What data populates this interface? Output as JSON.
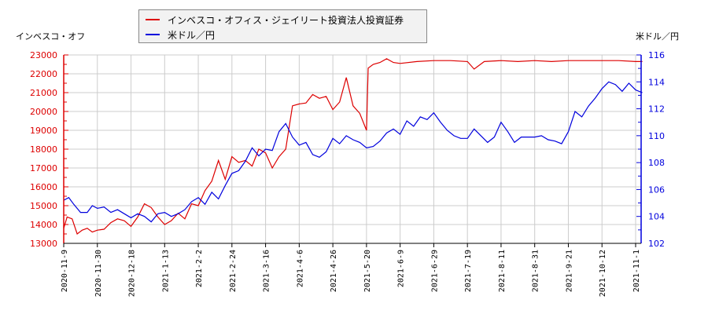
{
  "legend": {
    "items": [
      {
        "label": "インベスコ・オフィス・ジェイリート投資法人投資証券",
        "color": "#dd0000"
      },
      {
        "label": "米ドル／円",
        "color": "#0000dd"
      }
    ]
  },
  "axes": {
    "left_title": "インベスコ・オフ",
    "right_title": "米ドル／円"
  },
  "chart_data": {
    "type": "line",
    "title": "",
    "legend_position": "top",
    "grid": true,
    "x_tick_labels": [
      "2020-11-9",
      "2020-11-30",
      "2020-12-18",
      "2021-1-13",
      "2021-2-2",
      "2021-2-24",
      "2021-3-16",
      "2021-4-6",
      "2021-4-26",
      "2021-5-20",
      "2021-6-9",
      "2021-6-29",
      "2021-7-19",
      "2021-8-11",
      "2021-8-31",
      "2021-9-21",
      "2021-10-12",
      "2021-11-1"
    ],
    "y_left": {
      "label": "インベスコ・オフ",
      "ticks": [
        13000,
        14000,
        15000,
        16000,
        17000,
        18000,
        19000,
        20000,
        21000,
        22000,
        23000
      ],
      "range": [
        13000,
        23000
      ],
      "color": "#dd0000"
    },
    "y_right": {
      "label": "米ドル／円",
      "ticks": [
        102,
        104,
        106,
        108,
        110,
        112,
        114,
        116
      ],
      "range": [
        102,
        116
      ],
      "color": "#0000dd"
    },
    "series": [
      {
        "name": "インベスコ・オフィス・ジェイリート投資法人投資証券",
        "axis": "left",
        "color": "#dd0000",
        "x_index": [
          0,
          0.1,
          0.25,
          0.4,
          0.55,
          0.7,
          0.85,
          1.0,
          1.2,
          1.4,
          1.6,
          1.8,
          2.0,
          2.2,
          2.4,
          2.6,
          2.8,
          3.0,
          3.2,
          3.4,
          3.6,
          3.8,
          4.0,
          4.2,
          4.4,
          4.6,
          4.8,
          5.0,
          5.2,
          5.4,
          5.6,
          5.8,
          6.0,
          6.2,
          6.4,
          6.6,
          6.8,
          7.0,
          7.2,
          7.4,
          7.6,
          7.8,
          8.0,
          8.2,
          8.4,
          8.6,
          8.8,
          9.0,
          9.05,
          9.2,
          9.4,
          9.6,
          9.8,
          10.0,
          10.5,
          11.0,
          11.5,
          12.0,
          12.2,
          12.5,
          13.0,
          13.5,
          14.0,
          14.5,
          15.0,
          15.5,
          16.0,
          16.5,
          17.0,
          17.2
        ],
        "values": [
          13800,
          14400,
          14300,
          13500,
          13700,
          13800,
          13600,
          13700,
          13750,
          14100,
          14300,
          14200,
          13900,
          14400,
          15100,
          14900,
          14400,
          14000,
          14200,
          14600,
          14300,
          15100,
          15000,
          15800,
          16300,
          17400,
          16400,
          17600,
          17300,
          17400,
          17100,
          18000,
          17800,
          17000,
          17600,
          18000,
          20300,
          20400,
          20450,
          20900,
          20700,
          20800,
          20100,
          20500,
          21800,
          20300,
          19900,
          19000,
          22300,
          22500,
          22600,
          22800,
          22600,
          22550,
          22650,
          22700,
          22700,
          22650,
          22250,
          22650,
          22700,
          22650,
          22700,
          22650,
          22700,
          22700,
          22700,
          22700,
          22650,
          22650
        ]
      },
      {
        "name": "米ドル／円",
        "axis": "right",
        "color": "#0000dd",
        "x_index": [
          0,
          0.15,
          0.3,
          0.5,
          0.7,
          0.85,
          1.0,
          1.2,
          1.4,
          1.6,
          1.8,
          2.0,
          2.2,
          2.4,
          2.6,
          2.8,
          3.0,
          3.2,
          3.4,
          3.6,
          3.8,
          4.0,
          4.2,
          4.4,
          4.6,
          4.8,
          5.0,
          5.2,
          5.4,
          5.6,
          5.8,
          6.0,
          6.2,
          6.4,
          6.6,
          6.8,
          7.0,
          7.2,
          7.4,
          7.6,
          7.8,
          8.0,
          8.2,
          8.4,
          8.6,
          8.8,
          9.0,
          9.2,
          9.4,
          9.6,
          9.8,
          10.0,
          10.2,
          10.4,
          10.6,
          10.8,
          11.0,
          11.2,
          11.4,
          11.6,
          11.8,
          12.0,
          12.2,
          12.4,
          12.6,
          12.8,
          13.0,
          13.2,
          13.4,
          13.6,
          13.8,
          14.0,
          14.2,
          14.4,
          14.6,
          14.8,
          15.0,
          15.2,
          15.4,
          15.6,
          15.8,
          16.0,
          16.2,
          16.4,
          16.6,
          16.8,
          17.0,
          17.2
        ],
        "values": [
          105.2,
          105.4,
          104.9,
          104.3,
          104.3,
          104.8,
          104.6,
          104.7,
          104.3,
          104.5,
          104.2,
          103.9,
          104.2,
          104.0,
          103.6,
          104.2,
          104.3,
          104.0,
          104.2,
          104.5,
          105.1,
          105.4,
          104.9,
          105.8,
          105.3,
          106.3,
          107.2,
          107.4,
          108.1,
          109.1,
          108.5,
          109.0,
          108.9,
          110.3,
          110.9,
          109.9,
          109.3,
          109.5,
          108.6,
          108.4,
          108.8,
          109.8,
          109.4,
          110.0,
          109.7,
          109.5,
          109.1,
          109.2,
          109.6,
          110.2,
          110.5,
          110.1,
          111.1,
          110.7,
          111.4,
          111.2,
          111.7,
          111.0,
          110.4,
          110.0,
          109.8,
          109.8,
          110.5,
          110.0,
          109.5,
          109.9,
          111.0,
          110.3,
          109.5,
          109.9,
          109.9,
          109.9,
          110.0,
          109.7,
          109.6,
          109.4,
          110.3,
          111.8,
          111.4,
          112.2,
          112.8,
          113.5,
          114.0,
          113.8,
          113.3,
          113.9,
          113.4,
          113.2
        ]
      }
    ]
  }
}
